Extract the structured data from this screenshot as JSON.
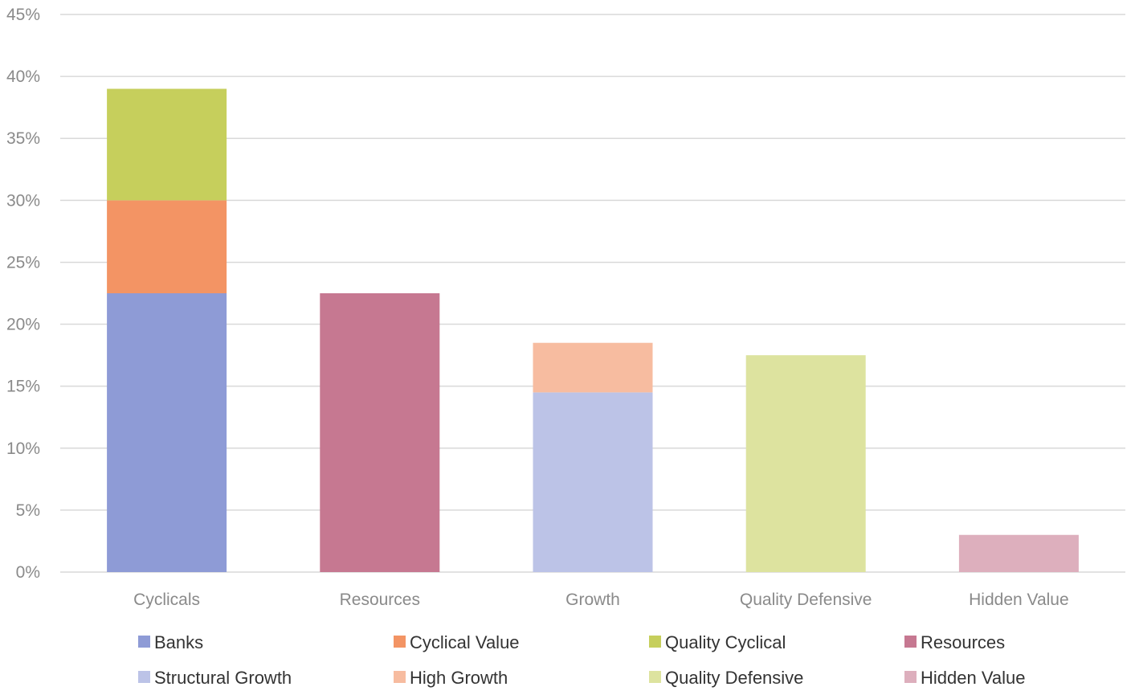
{
  "chart_data": {
    "type": "bar",
    "stacked": true,
    "categories": [
      "Cyclicals",
      "Resources",
      "Growth",
      "Quality Defensive",
      "Hidden Value"
    ],
    "y_ticks": [
      "0%",
      "5%",
      "10%",
      "15%",
      "20%",
      "25%",
      "30%",
      "35%",
      "40%",
      "45%"
    ],
    "ylim": [
      0,
      45
    ],
    "grid": true,
    "legend_position": "bottom",
    "series": [
      {
        "name": "Banks",
        "color": "#8e9bd6",
        "values": [
          22.5,
          0,
          0,
          0,
          0
        ]
      },
      {
        "name": "Cyclical Value",
        "color": "#f39464",
        "values": [
          7.5,
          0,
          0,
          0,
          0
        ]
      },
      {
        "name": "Quality Cyclical",
        "color": "#c6cf5c",
        "values": [
          9,
          0,
          0,
          0,
          0
        ]
      },
      {
        "name": "Resources",
        "color": "#c67891",
        "values": [
          0,
          22.5,
          0,
          0,
          0
        ]
      },
      {
        "name": "Structural Growth",
        "color": "#bcc3e7",
        "values": [
          0,
          0,
          14.5,
          0,
          0
        ]
      },
      {
        "name": "High Growth",
        "color": "#f7bca0",
        "values": [
          0,
          0,
          4,
          0,
          0
        ]
      },
      {
        "name": "Quality Defensive",
        "color": "#dde39f",
        "values": [
          0,
          0,
          0,
          17.5,
          0
        ]
      },
      {
        "name": "Hidden Value",
        "color": "#ddafbd",
        "values": [
          0,
          0,
          0,
          0,
          3
        ]
      }
    ]
  }
}
